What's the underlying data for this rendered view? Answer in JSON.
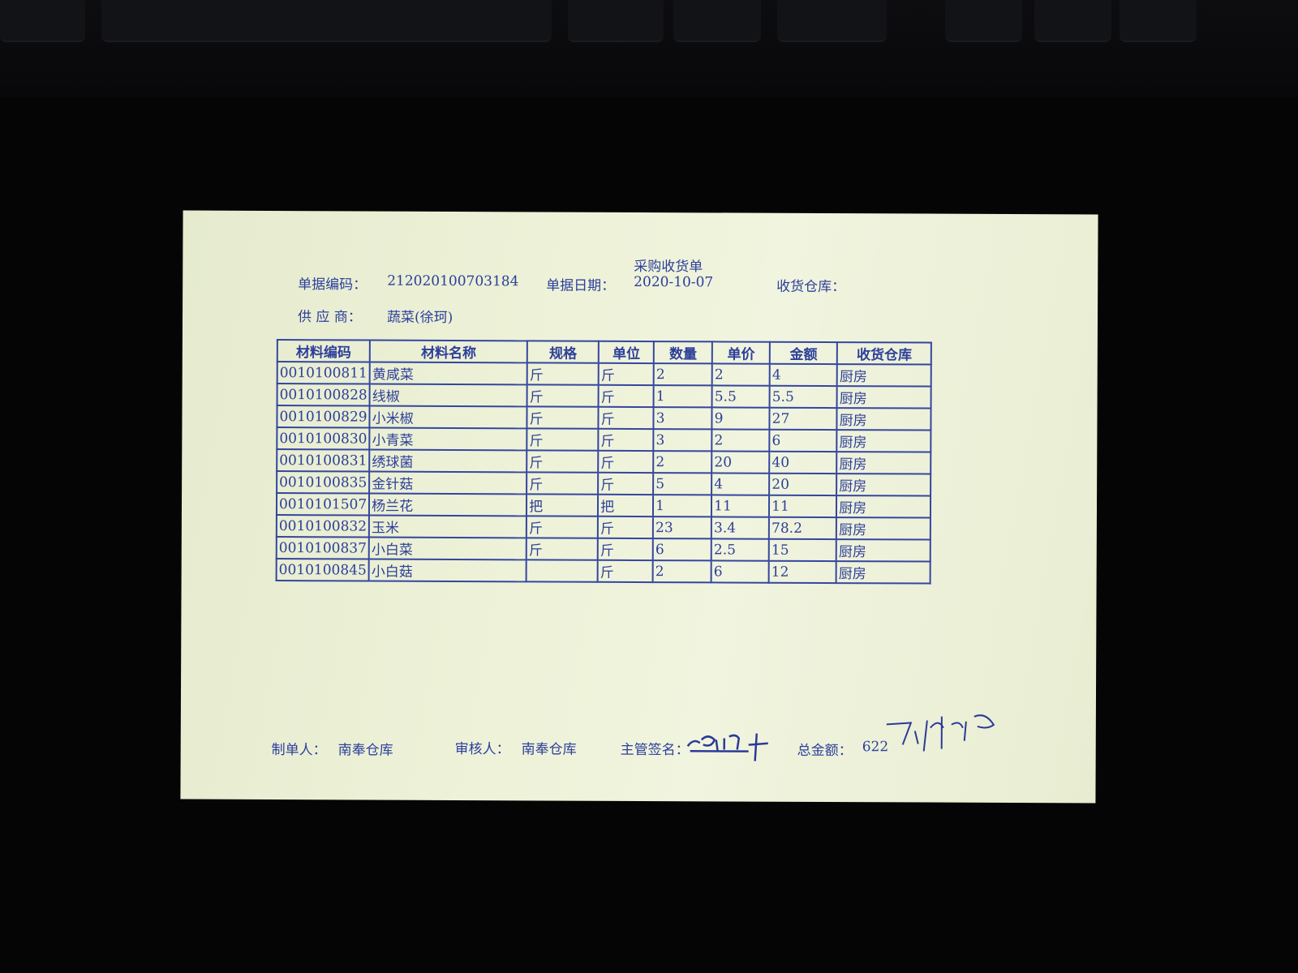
{
  "document": {
    "title": "采购收货单",
    "doc_number_label": "单据编码：",
    "doc_number": "212020100703184",
    "doc_date_label": "单据日期：",
    "doc_date": "2020-10-07",
    "warehouse_label": "收货仓库：",
    "supplier_label": "供 应 商：",
    "supplier": "蔬菜(徐珂)"
  },
  "table": {
    "headers": [
      "材料编码",
      "材料名称",
      "规格",
      "单位",
      "数量",
      "单价",
      "金额",
      "收货仓库"
    ],
    "rows": [
      [
        "0010100811",
        "黄咸菜",
        "斤",
        "斤",
        "2",
        "2",
        "4",
        "厨房"
      ],
      [
        "0010100828",
        "线椒",
        "斤",
        "斤",
        "1",
        "5.5",
        "5.5",
        "厨房"
      ],
      [
        "0010100829",
        "小米椒",
        "斤",
        "斤",
        "3",
        "9",
        "27",
        "厨房"
      ],
      [
        "0010100830",
        "小青菜",
        "斤",
        "斤",
        "3",
        "2",
        "6",
        "厨房"
      ],
      [
        "0010100831",
        "绣球菌",
        "斤",
        "斤",
        "2",
        "20",
        "40",
        "厨房"
      ],
      [
        "0010100835",
        "金针菇",
        "斤",
        "斤",
        "5",
        "4",
        "20",
        "厨房"
      ],
      [
        "0010101507",
        "杨兰花",
        "把",
        "把",
        "1",
        "11",
        "11",
        "厨房"
      ],
      [
        "0010100832",
        "玉米",
        "斤",
        "斤",
        "23",
        "3.4",
        "78.2",
        "厨房"
      ],
      [
        "0010100837",
        "小白菜",
        "斤",
        "斤",
        "6",
        "2.5",
        "15",
        "厨房"
      ],
      [
        "0010100845",
        "小白菇",
        "",
        "斤",
        "2",
        "6",
        "12",
        "厨房"
      ]
    ]
  },
  "footer": {
    "maker_label": "制单人：",
    "maker": "南奉仓库",
    "reviewer_label": "审核人：",
    "reviewer": "南奉仓库",
    "supervisor_label": "主管签名：",
    "total_label": "总金额：",
    "total": "622"
  },
  "colors": {
    "ink": "#2b3f9c",
    "paper": "#eef2d8",
    "background": "#050505"
  }
}
